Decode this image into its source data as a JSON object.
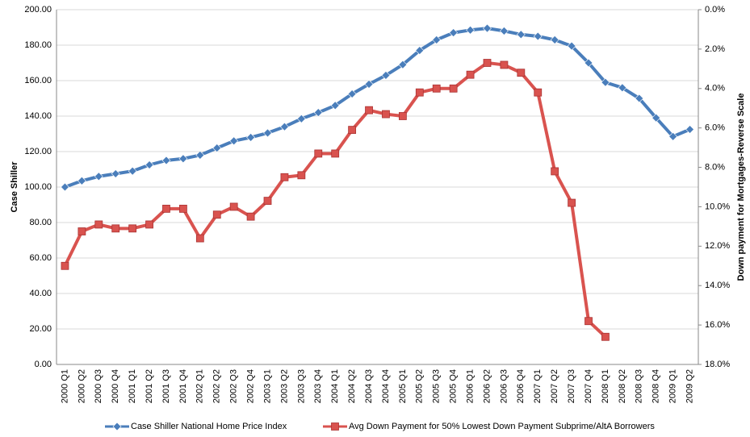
{
  "chart_data": {
    "type": "line",
    "categories": [
      "2000 Q1",
      "2000 Q2",
      "2000 Q3",
      "2000 Q4",
      "2001 Q1",
      "2001 Q2",
      "2001 Q3",
      "2001 Q4",
      "2002 Q1",
      "2002 Q2",
      "2002 Q3",
      "2002 Q4",
      "2003 Q1",
      "2003 Q2",
      "2003 Q3",
      "2003 Q4",
      "2004 Q1",
      "2004 Q2",
      "2004 Q3",
      "2004 Q4",
      "2005 Q1",
      "2005 Q2",
      "2005 Q3",
      "2005 Q4",
      "2006 Q1",
      "2006 Q2",
      "2006 Q3",
      "2006 Q4",
      "2007 Q1",
      "2007 Q2",
      "2007 Q3",
      "2007 Q4",
      "2008 Q1",
      "2008 Q2",
      "2008 Q3",
      "2008 Q4",
      "2009 Q1",
      "2009 Q2"
    ],
    "series": [
      {
        "name": "Case Shiller National Home Price Index",
        "color": "#4a7ebb",
        "marker": "diamond",
        "values": [
          100,
          103.5,
          106,
          107.5,
          109,
          112.5,
          115,
          116,
          118,
          122,
          126,
          128,
          130.5,
          134,
          138.5,
          142,
          146,
          152.5,
          158,
          163,
          169,
          177,
          183,
          187,
          188.5,
          189.5,
          188,
          186,
          185,
          183,
          179.5,
          170,
          159,
          156,
          150,
          139,
          128.5,
          132.5
        ]
      },
      {
        "name": "Avg Down Payment for 50% Lowest Down Payment Subprime/AltA Borrowers",
        "color": "#d9534f",
        "marker": "square",
        "axis": "y2",
        "values": [
          13.0,
          11.25,
          10.9,
          11.1,
          11.1,
          10.9,
          10.1,
          10.1,
          11.6,
          10.4,
          10.0,
          10.5,
          9.7,
          8.5,
          8.4,
          7.3,
          7.3,
          6.1,
          5.1,
          5.3,
          5.4,
          4.2,
          4.0,
          4.0,
          3.3,
          2.7,
          2.8,
          3.2,
          4.2,
          8.2,
          9.8,
          15.8,
          16.6,
          null,
          null,
          null,
          null,
          null
        ]
      }
    ],
    "y_label": "Case Shiller",
    "y2_label": "Down payment  for Mortgages-Reverse Scale",
    "ylim": [
      0,
      200
    ],
    "yticks": [
      {
        "value": 0,
        "label": "0.00"
      },
      {
        "value": 20,
        "label": "20.00"
      },
      {
        "value": 40,
        "label": "40.00"
      },
      {
        "value": 60,
        "label": "60.00"
      },
      {
        "value": 80,
        "label": "80.00"
      },
      {
        "value": 100,
        "label": "100.00"
      },
      {
        "value": 120,
        "label": "120.00"
      },
      {
        "value": 140,
        "label": "140.00"
      },
      {
        "value": 160,
        "label": "160.00"
      },
      {
        "value": 180,
        "label": "180.00"
      },
      {
        "value": 200,
        "label": "200.00"
      }
    ],
    "y2lim": [
      18,
      0
    ],
    "y2ticks": [
      {
        "value": 0,
        "label": "0.0%"
      },
      {
        "value": 2,
        "label": "2.0%"
      },
      {
        "value": 4,
        "label": "4.0%"
      },
      {
        "value": 6,
        "label": "6.0%"
      },
      {
        "value": 8,
        "label": "8.0%"
      },
      {
        "value": 10,
        "label": "10.0%"
      },
      {
        "value": 12,
        "label": "12.0%"
      },
      {
        "value": 14,
        "label": "14.0%"
      },
      {
        "value": 16,
        "label": "16.0%"
      },
      {
        "value": 18,
        "label": "18.0%"
      }
    ],
    "grid": true,
    "legend": "bottom"
  }
}
